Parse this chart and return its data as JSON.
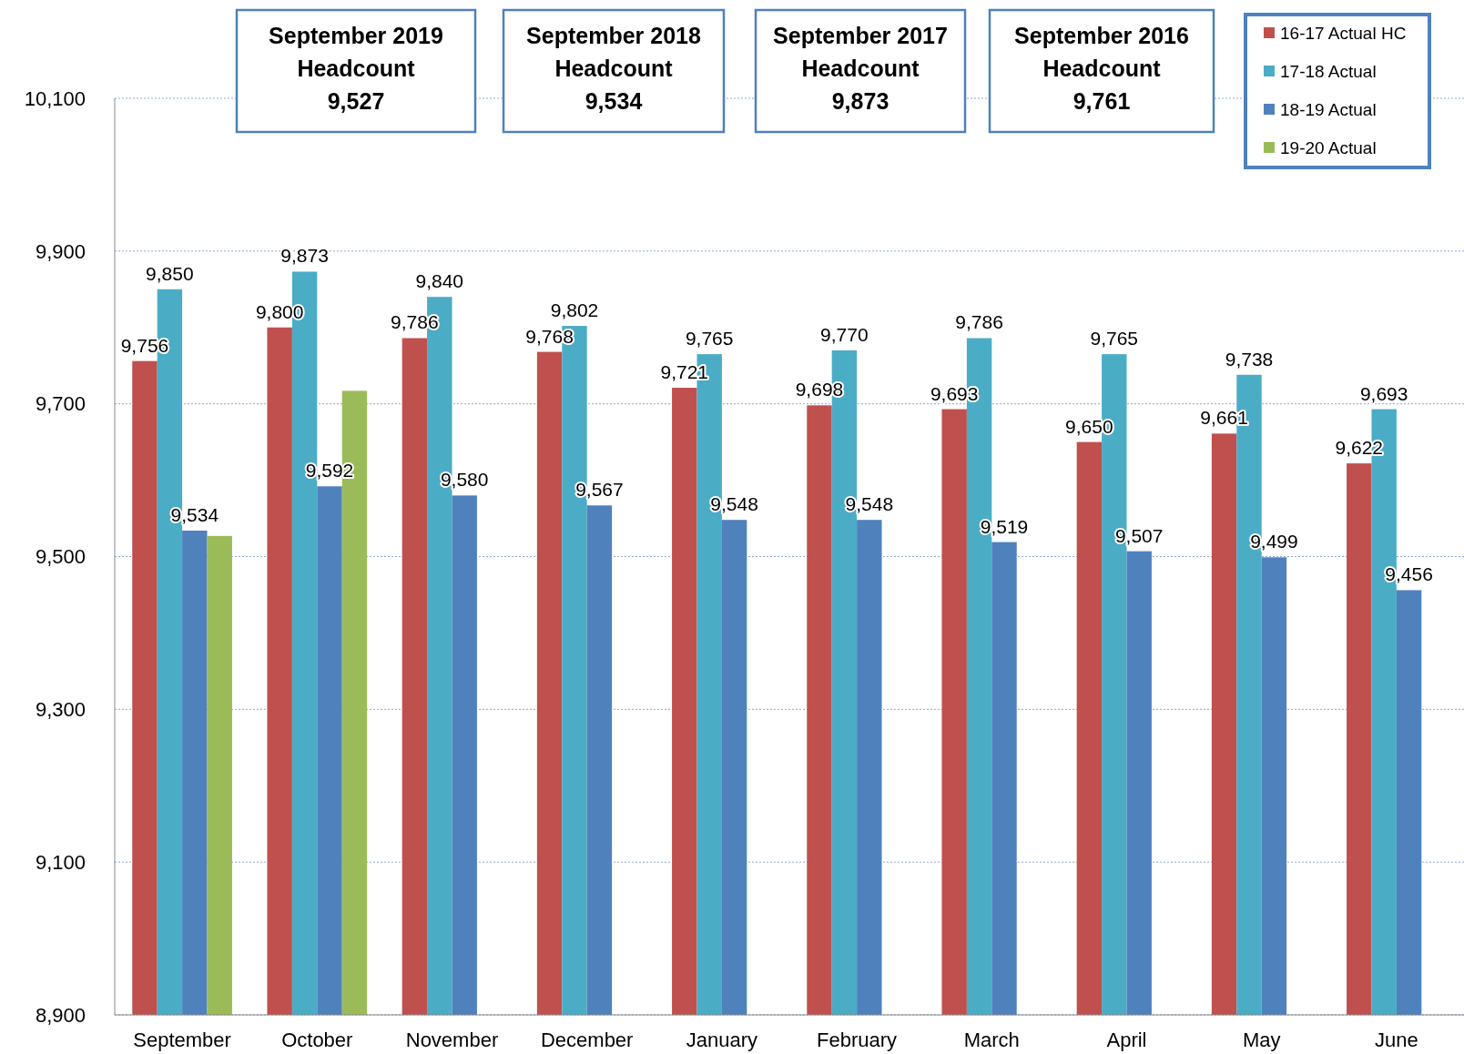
{
  "chart_data": {
    "type": "bar",
    "categories": [
      "September",
      "October",
      "November",
      "December",
      "January",
      "February",
      "March",
      "April",
      "May",
      "June"
    ],
    "series": [
      {
        "name": "16-17 Actual HC",
        "color": "#c0504d",
        "values": [
          9756,
          9800,
          9786,
          9768,
          9721,
          9698,
          9693,
          9650,
          9661,
          9622
        ],
        "value_labels": [
          "9,756",
          "9,800",
          "9,786",
          "9,768",
          "9,721",
          "9,698",
          "9,693",
          "9,650",
          "9,661",
          "9,622"
        ]
      },
      {
        "name": "17-18 Actual",
        "color": "#4bacc6",
        "values": [
          9850,
          9873,
          9840,
          9802,
          9765,
          9770,
          9786,
          9765,
          9738,
          9693
        ],
        "value_labels": [
          "9,850",
          "9,873",
          "9,840",
          "9,802",
          "9,765",
          "9,770",
          "9,786",
          "9,765",
          "9,738",
          "9,693"
        ]
      },
      {
        "name": "18-19 Actual",
        "color": "#4f81bd",
        "values": [
          9534,
          9592,
          9580,
          9567,
          9548,
          9548,
          9519,
          9507,
          9499,
          9456
        ],
        "value_labels": [
          "9,534",
          "9,592",
          "9,580",
          "9,567",
          "9,548",
          "9,548",
          "9,519",
          "9,507",
          "9,499",
          "9,456"
        ]
      },
      {
        "name": "19-20 Actual",
        "color": "#9bbb59",
        "values": [
          9527,
          9717,
          null,
          null,
          null,
          null,
          null,
          null,
          null,
          null
        ],
        "value_labels": [
          null,
          null,
          null,
          null,
          null,
          null,
          null,
          null,
          null,
          null
        ]
      }
    ],
    "ylim": [
      8900,
      10100
    ],
    "yticks": [
      {
        "value": 8900,
        "label": "8,900"
      },
      {
        "value": 9100,
        "label": "9,100"
      },
      {
        "value": 9300,
        "label": "9,300"
      },
      {
        "value": 9500,
        "label": "9,500"
      },
      {
        "value": 9700,
        "label": "9,700"
      },
      {
        "value": 9900,
        "label": "9,900"
      },
      {
        "value": 10100,
        "label": "10,100"
      }
    ],
    "grid": "y",
    "legend": "top right",
    "annotations": [
      "September 2019\nHeadcount\n9,527",
      "September 2018\nHeadcount\n9,534",
      "September 2017\nHeadcount\n9,873",
      "September 2016\nHeadcount\n9,761"
    ]
  }
}
